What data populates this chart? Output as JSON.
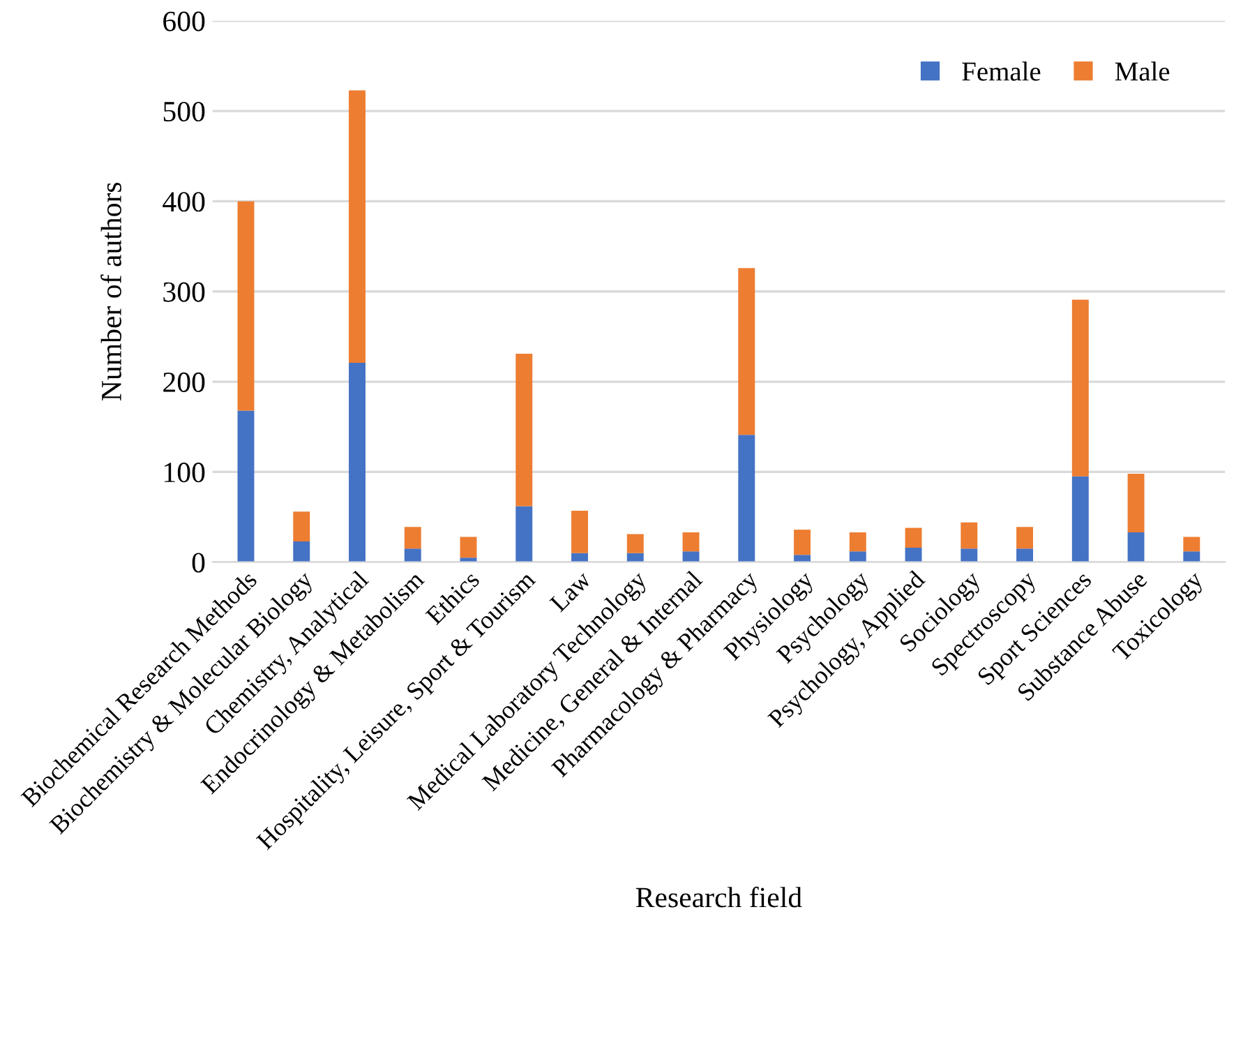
{
  "chart_data": {
    "type": "bar",
    "stacked": true,
    "xlabel": "Research field",
    "ylabel": "Number of authors",
    "categories": [
      "Biochemical Research Methods",
      "Biochemistry & Molecular Biology",
      "Chemistry, Analytical",
      "Endocrinology & Metabolism",
      "Ethics",
      "Hospitality, Leisure, Sport & Tourism",
      "Law",
      "Medical Laboratory Technology",
      "Medicine, General & Internal",
      "Pharmacology & Pharmacy",
      "Physiology",
      "Psychology",
      "Psychology, Applied",
      "Sociology",
      "Spectroscopy",
      "Sport Sciences",
      "Substance Abuse",
      "Toxicology"
    ],
    "series": [
      {
        "name": "Female",
        "color": "#4472c4",
        "values": [
          168,
          23,
          221,
          15,
          5,
          62,
          10,
          10,
          12,
          141,
          8,
          12,
          16,
          15,
          15,
          95,
          33,
          12
        ]
      },
      {
        "name": "Male",
        "color": "#ed7d31",
        "values": [
          232,
          33,
          302,
          24,
          23,
          169,
          47,
          21,
          21,
          185,
          28,
          21,
          22,
          29,
          24,
          196,
          65,
          16
        ]
      }
    ],
    "ylim": [
      0,
      600
    ],
    "yticks": [
      0,
      100,
      200,
      300,
      400,
      500,
      600
    ],
    "grid": "y",
    "legend": "top right"
  }
}
